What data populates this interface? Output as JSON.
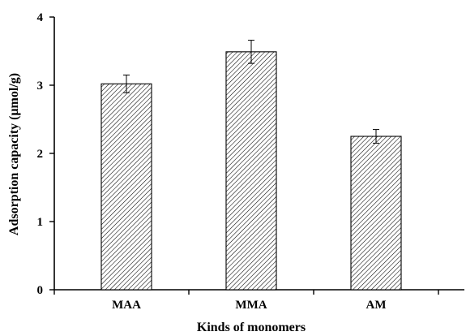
{
  "chart_data": {
    "type": "bar",
    "title": "",
    "xlabel": "Kinds of monomers",
    "ylabel": "Adsorption capacity (μmol/g)",
    "categories": [
      "MAA",
      "MMA",
      "AM"
    ],
    "values": [
      3.02,
      3.49,
      2.25
    ],
    "error": [
      0.13,
      0.17,
      0.1
    ],
    "ylim": [
      0,
      4
    ],
    "yticks": [
      0,
      1,
      2,
      3,
      4
    ],
    "ytick_labels": [
      "0",
      "1",
      "2",
      "3",
      "4"
    ],
    "bar_fill": "diagonal-hatch",
    "grid": false,
    "legend": "none",
    "colors": {
      "bar_edge": "#000000",
      "hatch": "#000000",
      "background": "#ffffff"
    }
  }
}
